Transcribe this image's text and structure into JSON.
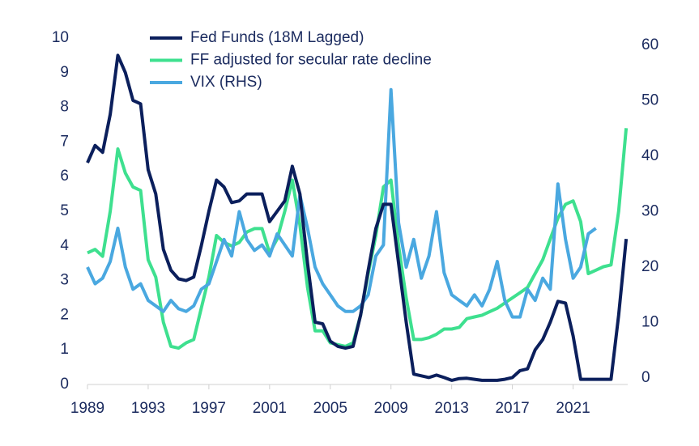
{
  "chart_data": {
    "type": "line",
    "x": [
      1989,
      1989.5,
      1990,
      1990.5,
      1991,
      1991.5,
      1992,
      1992.5,
      1993,
      1993.5,
      1994,
      1994.5,
      1995,
      1995.5,
      1996,
      1996.5,
      1997,
      1997.5,
      1998,
      1998.5,
      1999,
      1999.5,
      2000,
      2000.5,
      2001,
      2001.5,
      2002,
      2002.5,
      2003,
      2003.5,
      2004,
      2004.5,
      2005,
      2005.5,
      2006,
      2006.5,
      2007,
      2007.5,
      2008,
      2008.5,
      2009,
      2009.5,
      2010,
      2010.5,
      2011,
      2011.5,
      2012,
      2012.5,
      2013,
      2013.5,
      2014,
      2014.5,
      2015,
      2015.5,
      2016,
      2016.5,
      2017,
      2017.5,
      2018,
      2018.5,
      2019,
      2019.5,
      2020,
      2020.5,
      2021,
      2021.5,
      2022,
      2022.5,
      2023,
      2023.5,
      2024,
      2024.5
    ],
    "series": [
      {
        "name": "Fed Funds (18M Lagged)",
        "color": "#0b1f5c",
        "values": [
          6.4,
          6.9,
          6.7,
          7.8,
          9.5,
          9.0,
          8.2,
          8.1,
          6.2,
          5.5,
          3.9,
          3.3,
          3.05,
          3.0,
          3.1,
          4.0,
          5.0,
          5.9,
          5.7,
          5.25,
          5.3,
          5.5,
          5.5,
          5.5,
          4.7,
          5.0,
          5.3,
          6.3,
          5.5,
          3.5,
          1.8,
          1.75,
          1.25,
          1.1,
          1.05,
          1.1,
          2.0,
          3.3,
          4.5,
          5.2,
          5.2,
          3.5,
          1.8,
          0.3,
          0.25,
          0.2,
          0.27,
          0.2,
          0.12,
          0.17,
          0.18,
          0.15,
          0.12,
          0.12,
          0.12,
          0.15,
          0.2,
          0.4,
          0.45,
          1.0,
          1.3,
          1.8,
          2.4,
          2.35,
          1.4,
          0.15,
          0.15,
          0.15,
          0.15,
          0.15,
          2.0,
          4.2
        ]
      },
      {
        "name": "FF adjusted for secular rate decline",
        "color": "#3ee08f",
        "values": [
          3.8,
          3.9,
          3.7,
          5.0,
          6.8,
          6.1,
          5.7,
          5.6,
          3.6,
          3.1,
          1.8,
          1.1,
          1.05,
          1.2,
          1.3,
          2.2,
          3.1,
          4.3,
          4.1,
          4.0,
          4.1,
          4.4,
          4.5,
          4.5,
          3.8,
          4.2,
          5.0,
          5.9,
          4.6,
          2.8,
          1.55,
          1.55,
          1.2,
          1.15,
          1.1,
          1.2,
          2.0,
          3.2,
          4.3,
          5.7,
          5.9,
          4.0,
          2.5,
          1.3,
          1.3,
          1.35,
          1.45,
          1.6,
          1.6,
          1.65,
          1.9,
          1.95,
          2.0,
          2.1,
          2.2,
          2.35,
          2.5,
          2.65,
          2.8,
          3.2,
          3.6,
          4.2,
          4.8,
          5.2,
          5.3,
          4.7,
          3.2,
          3.3,
          3.4,
          3.45,
          5.0,
          7.4
        ]
      },
      {
        "name": "VIX (RHS)",
        "color": "#4aa8e0",
        "axis": "y2",
        "values": [
          20,
          17,
          18,
          21,
          27,
          20,
          16,
          17,
          14,
          13,
          12,
          14,
          12.5,
          12,
          13,
          16,
          17,
          21,
          25,
          22,
          30,
          25,
          23,
          24,
          22,
          26,
          24,
          22,
          33,
          27,
          20,
          17,
          15,
          13,
          12,
          12,
          13,
          15,
          22,
          24,
          52,
          28,
          20,
          25,
          18,
          22,
          30,
          19,
          15,
          14,
          13,
          15,
          13,
          16,
          21,
          14,
          11,
          11,
          16,
          14,
          18,
          16,
          35,
          25,
          18,
          20,
          26,
          27,
          null,
          null,
          null,
          null
        ]
      }
    ],
    "xlim": [
      1989,
      2024.6
    ],
    "xticks": [
      1989,
      1993,
      1997,
      2001,
      2005,
      2009,
      2013,
      2017,
      2021
    ],
    "ylim": [
      0,
      10
    ],
    "yticks": [
      0,
      1,
      2,
      3,
      4,
      5,
      6,
      7,
      8,
      9,
      10
    ],
    "y2lim": [
      0,
      60
    ],
    "y2ticks": [
      0,
      10,
      20,
      30,
      40,
      50,
      60
    ],
    "legend": "top"
  }
}
